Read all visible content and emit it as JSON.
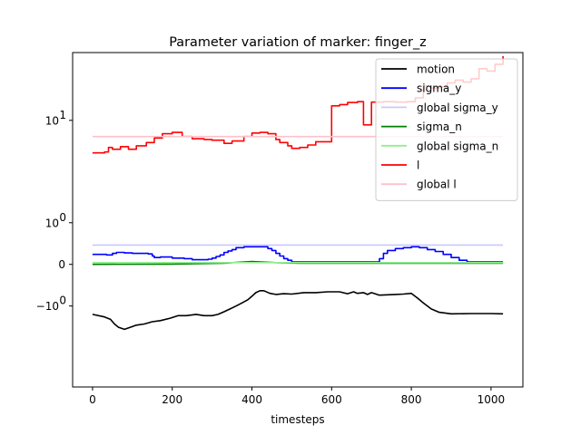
{
  "chart_data": {
    "type": "line",
    "title": "Parameter variation of marker: finger_z",
    "xlabel": "timesteps",
    "ylabel": "",
    "xlim": [
      -50,
      1080
    ],
    "yscale": "symlog",
    "ylim": [
      -6.7,
      33
    ],
    "x_ticks": [
      0,
      200,
      400,
      600,
      800,
      1000
    ],
    "y_ticks": [
      {
        "value": 10,
        "label": "10",
        "exp": "1"
      },
      {
        "value": 1,
        "label": "10",
        "exp": "0"
      },
      {
        "value": 0,
        "label": "0",
        "exp": ""
      },
      {
        "value": -1,
        "label": "−10",
        "exp": "0"
      }
    ],
    "grid": false,
    "legend_position": "upper right",
    "series": [
      {
        "name": "motion",
        "color": "#000000",
        "step": false,
        "x": [
          0,
          30,
          45,
          55,
          65,
          80,
          95,
          110,
          130,
          150,
          170,
          195,
          215,
          235,
          260,
          280,
          300,
          315,
          330,
          345,
          360,
          375,
          390,
          400,
          410,
          420,
          430,
          445,
          460,
          480,
          500,
          530,
          560,
          590,
          620,
          640,
          655,
          665,
          680,
          690,
          700,
          720,
          740,
          760,
          780,
          800,
          815,
          830,
          850,
          870,
          900,
          950,
          1000,
          1030
        ],
        "y": [
          -1.3,
          -1.4,
          -1.5,
          -1.7,
          -1.85,
          -1.95,
          -1.85,
          -1.75,
          -1.7,
          -1.6,
          -1.55,
          -1.45,
          -1.35,
          -1.35,
          -1.3,
          -1.35,
          -1.35,
          -1.3,
          -1.2,
          -1.1,
          -1.0,
          -0.9,
          -0.8,
          -0.7,
          -0.6,
          -0.55,
          -0.55,
          -0.62,
          -0.65,
          -0.63,
          -0.64,
          -0.6,
          -0.6,
          -0.58,
          -0.58,
          -0.63,
          -0.58,
          -0.62,
          -0.6,
          -0.65,
          -0.6,
          -0.67,
          -0.66,
          -0.65,
          -0.64,
          -0.62,
          -0.75,
          -0.9,
          -1.1,
          -1.22,
          -1.28,
          -1.27,
          -1.27,
          -1.28
        ]
      },
      {
        "name": "sigma_y",
        "color": "#0000ff",
        "step": true,
        "x": [
          0,
          35,
          50,
          60,
          80,
          100,
          120,
          140,
          150,
          155,
          170,
          200,
          230,
          250,
          270,
          290,
          300,
          310,
          320,
          330,
          340,
          350,
          360,
          380,
          400,
          420,
          440,
          450,
          460,
          470,
          480,
          490,
          500,
          700,
          720,
          730,
          740,
          760,
          780,
          800,
          820,
          840,
          860,
          880,
          900,
          920,
          940,
          1030
        ],
        "y": [
          0.18,
          0.17,
          0.2,
          0.22,
          0.21,
          0.2,
          0.2,
          0.19,
          0.15,
          0.12,
          0.13,
          0.11,
          0.1,
          0.08,
          0.08,
          0.09,
          0.11,
          0.14,
          0.17,
          0.22,
          0.25,
          0.28,
          0.32,
          0.34,
          0.34,
          0.34,
          0.3,
          0.26,
          0.2,
          0.15,
          0.1,
          0.07,
          0.04,
          0.04,
          0.1,
          0.2,
          0.26,
          0.3,
          0.32,
          0.34,
          0.32,
          0.28,
          0.24,
          0.18,
          0.12,
          0.07,
          0.04,
          0.04
        ]
      },
      {
        "name": "global sigma_y",
        "color": "#c8c8ff",
        "step": false,
        "x": [
          0,
          1030
        ],
        "y": [
          0.38,
          0.38
        ]
      },
      {
        "name": "sigma_n",
        "color": "#008000",
        "step": false,
        "x": [
          0,
          200,
          330,
          400,
          460,
          520,
          700,
          800,
          900,
          1030
        ],
        "y": [
          0.0,
          0.005,
          0.02,
          0.05,
          0.03,
          0.02,
          0.02,
          0.02,
          0.02,
          0.02
        ]
      },
      {
        "name": "global sigma_n",
        "color": "#90ee90",
        "step": false,
        "x": [
          0,
          1030
        ],
        "y": [
          0.03,
          0.03
        ]
      },
      {
        "name": "l",
        "color": "#ff0000",
        "step": true,
        "x": [
          0,
          30,
          40,
          50,
          70,
          90,
          110,
          135,
          155,
          175,
          200,
          225,
          250,
          280,
          300,
          330,
          350,
          380,
          400,
          420,
          440,
          460,
          470,
          490,
          500,
          520,
          540,
          560,
          600,
          620,
          640,
          665,
          680,
          700,
          730,
          760,
          790,
          810,
          830,
          850,
          870,
          890,
          910,
          930,
          950,
          970,
          990,
          1010,
          1030
        ],
        "y": [
          5.4,
          5.5,
          6.0,
          5.8,
          6.1,
          5.8,
          6.2,
          6.6,
          7.2,
          7.8,
          8.0,
          7.4,
          7.1,
          7.0,
          6.9,
          6.5,
          6.8,
          7.4,
          7.9,
          8.0,
          7.8,
          7.0,
          6.6,
          6.2,
          5.9,
          6.0,
          6.3,
          6.7,
          13.0,
          13.3,
          13.8,
          14.0,
          9.2,
          13.9,
          14.0,
          13.9,
          14.0,
          15.0,
          18.5,
          17.8,
          18.2,
          19.5,
          20.5,
          19.8,
          21.0,
          25.0,
          24.0,
          27.0,
          31.0
        ]
      },
      {
        "name": "global l",
        "color": "#ffc0cb",
        "step": false,
        "x": [
          0,
          1030
        ],
        "y": [
          7.4,
          7.4
        ]
      }
    ]
  }
}
